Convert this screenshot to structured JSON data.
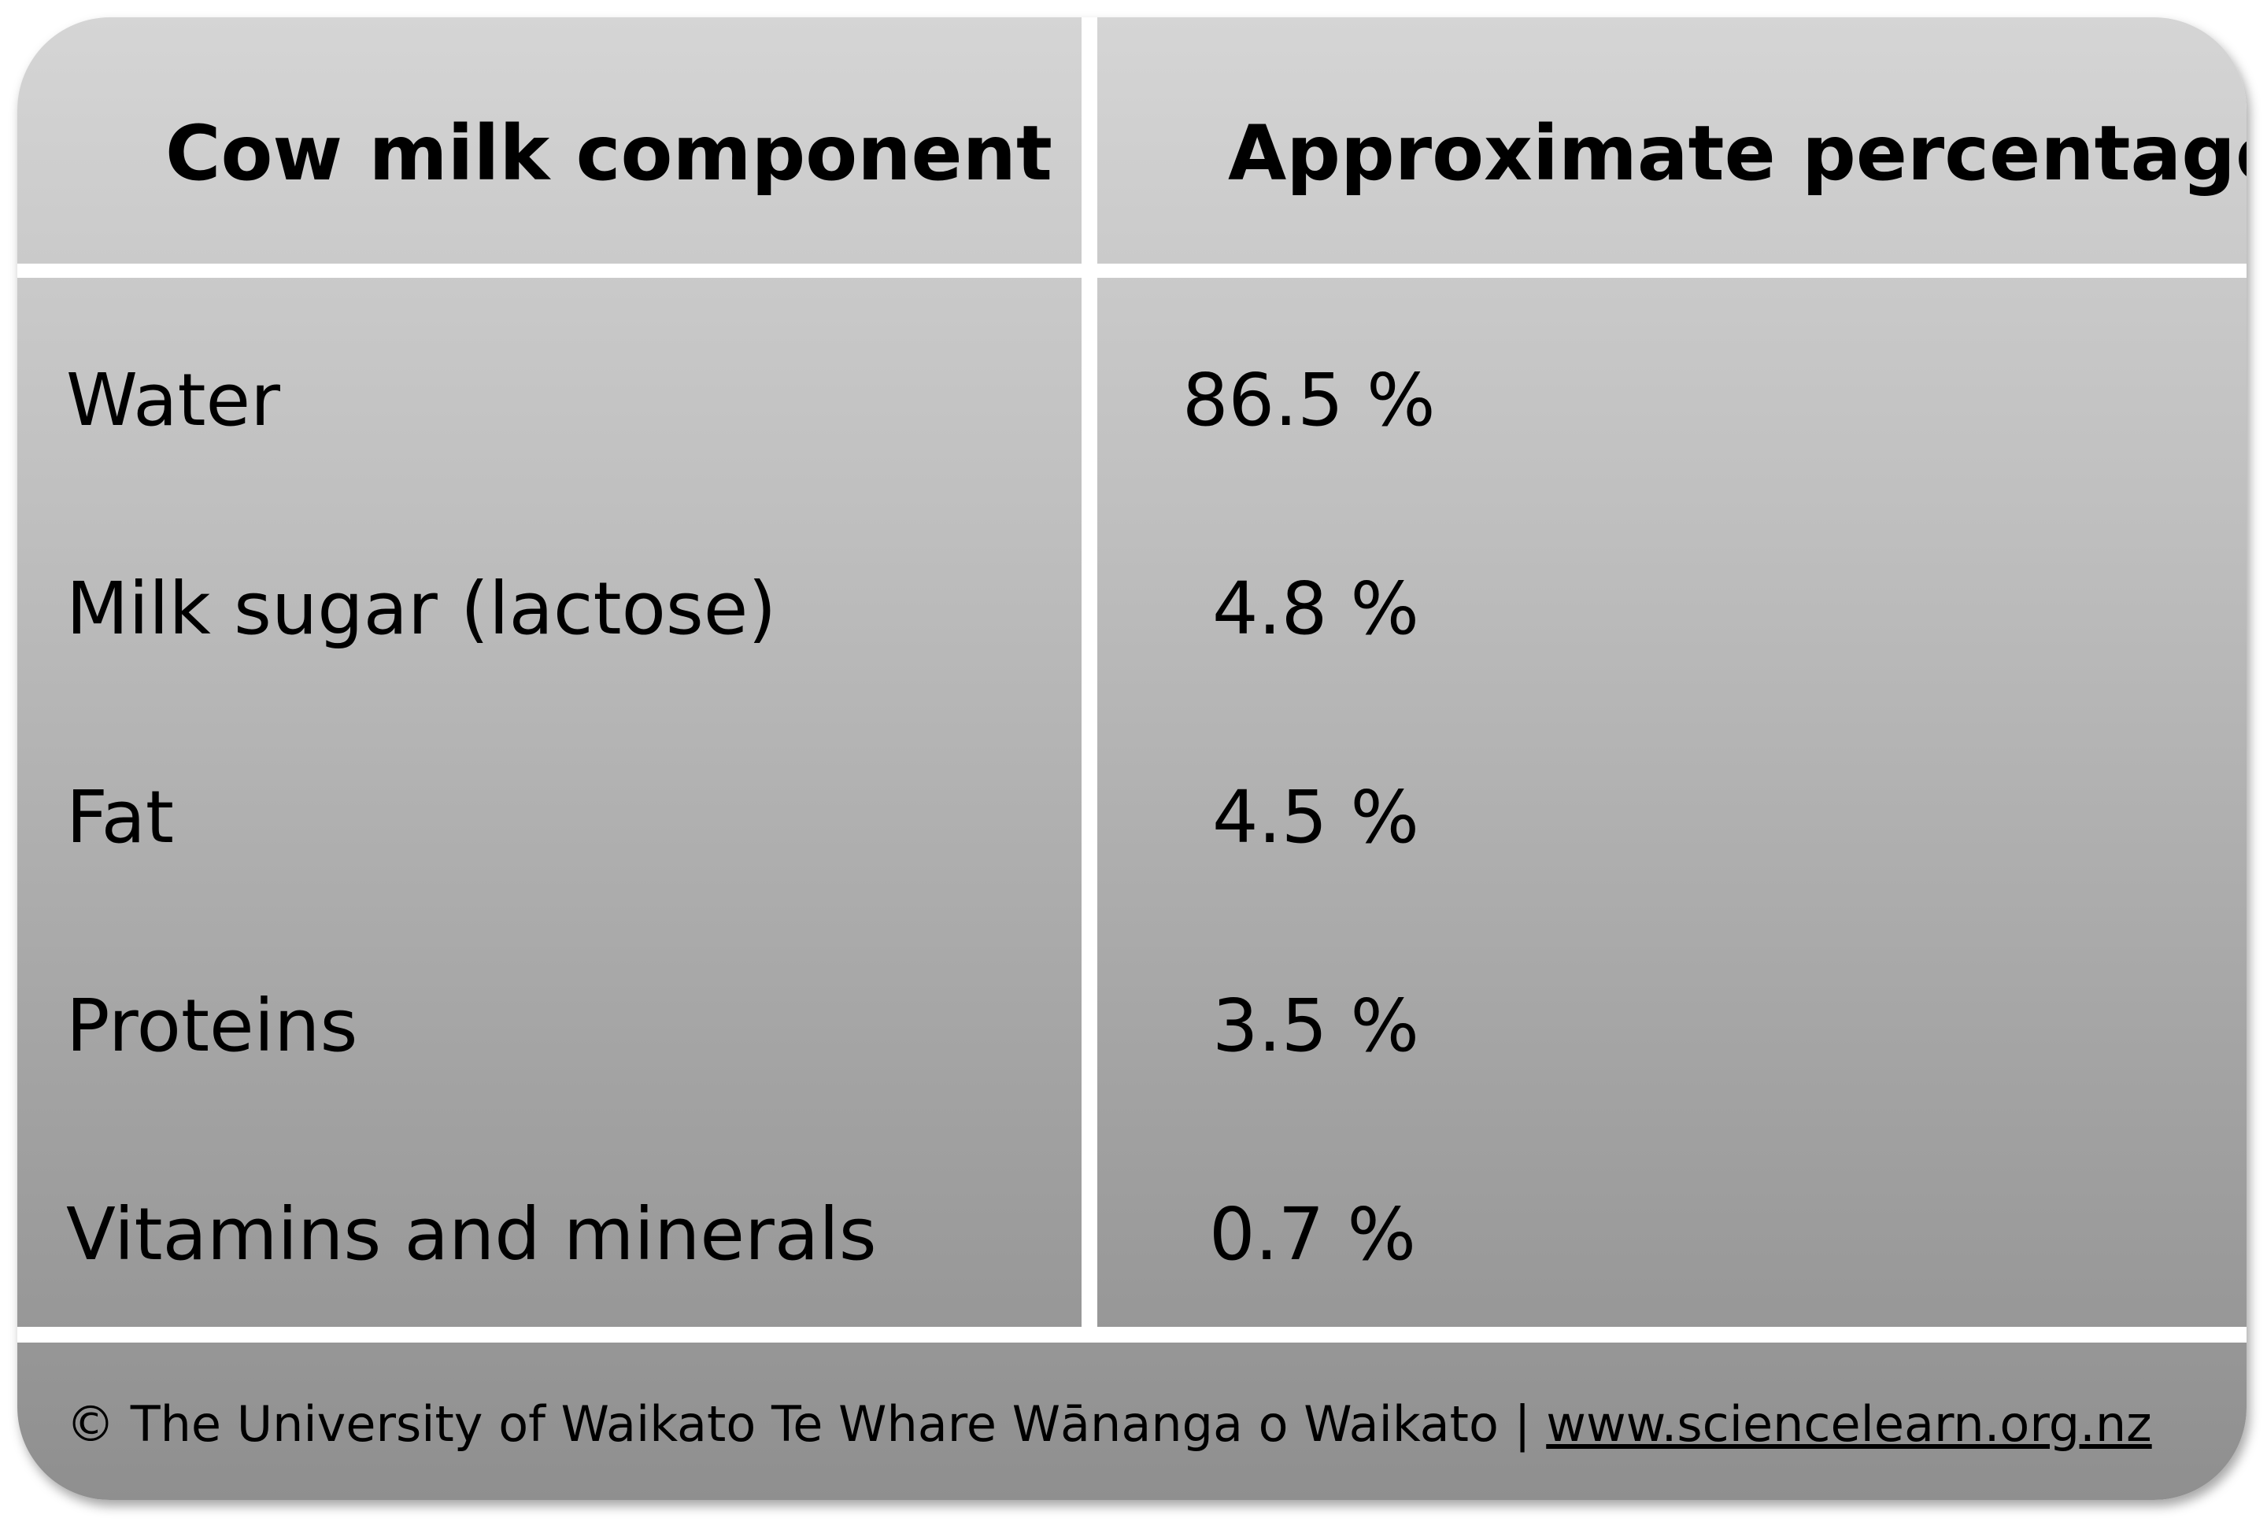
{
  "table": {
    "headers": [
      "Cow milk component",
      "Approximate percentage"
    ],
    "rows": [
      {
        "component": "Water",
        "percentage": "86.5 %"
      },
      {
        "component": "Milk sugar (lactose)",
        "percentage": "4.8 %"
      },
      {
        "component": "Fat",
        "percentage": "4.5 %"
      },
      {
        "component": "Proteins",
        "percentage": "3.5 %"
      },
      {
        "component": "Vitamins and minerals",
        "percentage": "0.7 %"
      }
    ]
  },
  "footer": {
    "credit": "© The University of Waikato Te Whare Wānanga o Waikato | ",
    "link": "www.sciencelearn.org.nz"
  }
}
